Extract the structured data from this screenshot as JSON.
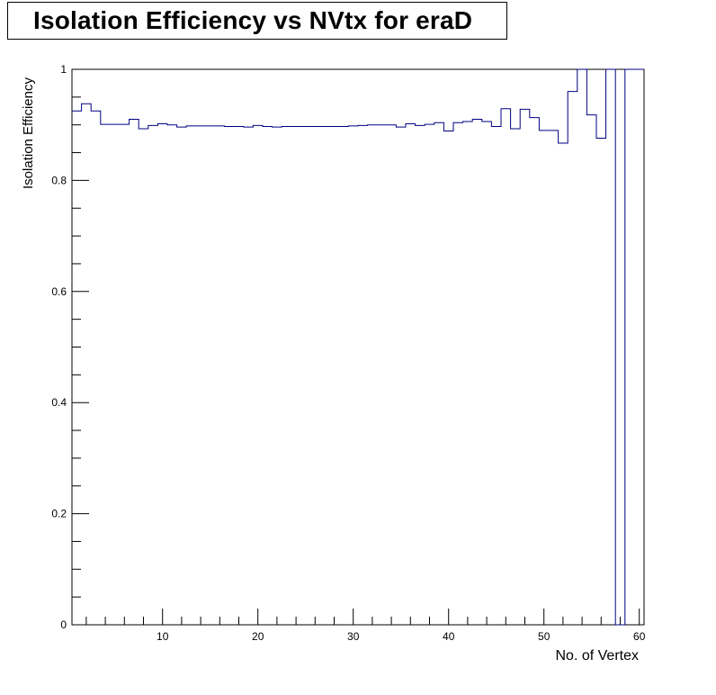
{
  "chart_data": {
    "type": "line",
    "title": "Isolation Efficiency vs NVtx for eraD",
    "xlabel": "No. of Vertex",
    "ylabel": "Isolation Efficiency",
    "xlim": [
      0.5,
      60.5
    ],
    "ylim": [
      0,
      1
    ],
    "x_ticks": [
      10,
      20,
      30,
      40,
      50,
      60
    ],
    "x_tick_labels": [
      "10",
      "20",
      "30",
      "40",
      "50",
      "60"
    ],
    "y_ticks": [
      0,
      0.2,
      0.4,
      0.6,
      0.8,
      1
    ],
    "y_tick_labels": [
      "0",
      "0.2",
      "0.4",
      "0.6",
      "0.8",
      "1"
    ],
    "grid": false,
    "line_color": "#000080",
    "series": [
      {
        "bin_edges": [
          0.5,
          60.5
        ],
        "values": [
          0.925,
          0.938,
          0.925,
          0.901,
          0.901,
          0.901,
          0.91,
          0.893,
          0.899,
          0.902,
          0.9,
          0.896,
          0.898,
          0.898,
          0.898,
          0.898,
          0.897,
          0.897,
          0.896,
          0.899,
          0.897,
          0.896,
          0.897,
          0.897,
          0.897,
          0.897,
          0.897,
          0.897,
          0.897,
          0.898,
          0.899,
          0.9,
          0.9,
          0.9,
          0.896,
          0.902,
          0.899,
          0.901,
          0.904,
          0.889,
          0.904,
          0.906,
          0.91,
          0.906,
          0.897,
          0.929,
          0.893,
          0.928,
          0.913,
          0.89,
          0.89,
          0.867,
          0.96,
          1.0,
          0.918,
          0.876,
          1.0,
          0.0,
          1.0,
          1.0
        ]
      }
    ]
  }
}
